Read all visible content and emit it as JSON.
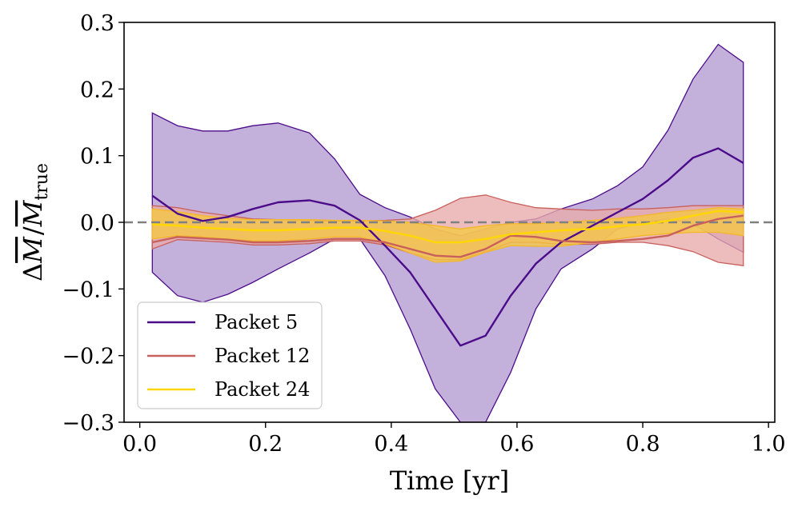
{
  "chart_data": {
    "type": "line",
    "title": "",
    "xlabel": "Time [yr]",
    "ylabel": "ΔM̄ / M̄_true",
    "ylabel_main": "Δ",
    "ylabel_sym": "M",
    "ylabel_sub": "true",
    "xlim": [
      -0.025,
      1.01
    ],
    "ylim": [
      -0.3,
      0.3
    ],
    "xticks": [
      0.0,
      0.2,
      0.4,
      0.6,
      0.8,
      1.0
    ],
    "xtick_labels": [
      "0.0",
      "0.2",
      "0.4",
      "0.6",
      "0.8",
      "1.0"
    ],
    "yticks": [
      -0.3,
      -0.2,
      -0.1,
      0.0,
      0.1,
      0.2,
      0.3
    ],
    "ytick_labels": [
      "−0.3",
      "−0.2",
      "−0.1",
      "0.0",
      "0.1",
      "0.2",
      "0.3"
    ],
    "reference_line": {
      "y": 0.0,
      "style": "dashed",
      "color": "#808080"
    },
    "legend_position": "lower-left",
    "x": [
      0.02,
      0.06,
      0.1,
      0.14,
      0.18,
      0.22,
      0.27,
      0.31,
      0.35,
      0.39,
      0.43,
      0.47,
      0.51,
      0.55,
      0.59,
      0.63,
      0.67,
      0.72,
      0.76,
      0.8,
      0.84,
      0.88,
      0.92,
      0.96
    ],
    "series": [
      {
        "name": "Packet 5",
        "line_color": "#4b0c8a",
        "fill_color": "#b39bd1",
        "band_edge_color": "#4b0c8a",
        "mean": [
          0.04,
          0.013,
          0.002,
          0.008,
          0.02,
          0.03,
          0.033,
          0.025,
          0.003,
          -0.035,
          -0.075,
          -0.13,
          -0.185,
          -0.17,
          -0.11,
          -0.062,
          -0.03,
          -0.005,
          0.015,
          0.035,
          0.063,
          0.097,
          0.111,
          0.089
        ],
        "upper": [
          0.164,
          0.145,
          0.137,
          0.137,
          0.145,
          0.149,
          0.134,
          0.095,
          0.042,
          0.022,
          0.008,
          -0.01,
          -0.02,
          -0.01,
          0.0,
          0.005,
          0.02,
          0.035,
          0.055,
          0.083,
          0.138,
          0.215,
          0.267,
          0.24
        ],
        "lower": [
          -0.075,
          -0.11,
          -0.12,
          -0.108,
          -0.09,
          -0.07,
          -0.046,
          -0.025,
          -0.025,
          -0.08,
          -0.16,
          -0.25,
          -0.3,
          -0.3,
          -0.225,
          -0.13,
          -0.07,
          -0.04,
          -0.01,
          0.0,
          0.005,
          -0.002,
          -0.025,
          -0.045
        ]
      },
      {
        "name": "Packet 12",
        "line_color": "#c8605c",
        "fill_color": "#e8abaa",
        "band_edge_color": "#c8605c",
        "mean": [
          -0.03,
          -0.022,
          -0.024,
          -0.026,
          -0.03,
          -0.03,
          -0.028,
          -0.025,
          -0.025,
          -0.03,
          -0.04,
          -0.05,
          -0.052,
          -0.04,
          -0.02,
          -0.022,
          -0.028,
          -0.03,
          -0.028,
          -0.025,
          -0.02,
          -0.005,
          0.005,
          0.01
        ],
        "upper": [
          0.025,
          0.022,
          0.015,
          0.01,
          0.005,
          0.004,
          0.003,
          0.002,
          0.002,
          0.003,
          0.005,
          0.018,
          0.036,
          0.041,
          0.03,
          0.022,
          0.02,
          0.018,
          0.02,
          0.02,
          0.022,
          0.025,
          0.025,
          0.025
        ],
        "lower": [
          -0.04,
          -0.026,
          -0.028,
          -0.03,
          -0.034,
          -0.034,
          -0.032,
          -0.028,
          -0.028,
          -0.034,
          -0.046,
          -0.056,
          -0.056,
          -0.044,
          -0.03,
          -0.03,
          -0.033,
          -0.033,
          -0.03,
          -0.03,
          -0.035,
          -0.044,
          -0.06,
          -0.065
        ]
      },
      {
        "name": "Packet 24",
        "line_color": "#ffd700",
        "fill_color": "#f6c842",
        "band_edge_color": "#f3b72a",
        "mean": [
          -0.003,
          -0.005,
          -0.008,
          -0.01,
          -0.012,
          -0.012,
          -0.01,
          -0.008,
          -0.008,
          -0.013,
          -0.02,
          -0.03,
          -0.03,
          -0.025,
          -0.018,
          -0.015,
          -0.012,
          -0.01,
          -0.006,
          -0.003,
          0.002,
          0.01,
          0.017,
          0.015
        ],
        "upper": [
          0.02,
          0.016,
          0.01,
          0.006,
          0.004,
          0.004,
          0.004,
          0.003,
          0.003,
          0.002,
          0.0,
          -0.005,
          -0.01,
          -0.005,
          -0.002,
          -0.002,
          0.0,
          0.003,
          0.006,
          0.01,
          0.015,
          0.018,
          0.022,
          0.02
        ],
        "lower": [
          -0.025,
          -0.02,
          -0.022,
          -0.025,
          -0.028,
          -0.028,
          -0.025,
          -0.022,
          -0.022,
          -0.032,
          -0.046,
          -0.06,
          -0.058,
          -0.045,
          -0.035,
          -0.036,
          -0.036,
          -0.03,
          -0.025,
          -0.02,
          -0.017,
          -0.015,
          -0.015,
          -0.02
        ]
      }
    ]
  }
}
